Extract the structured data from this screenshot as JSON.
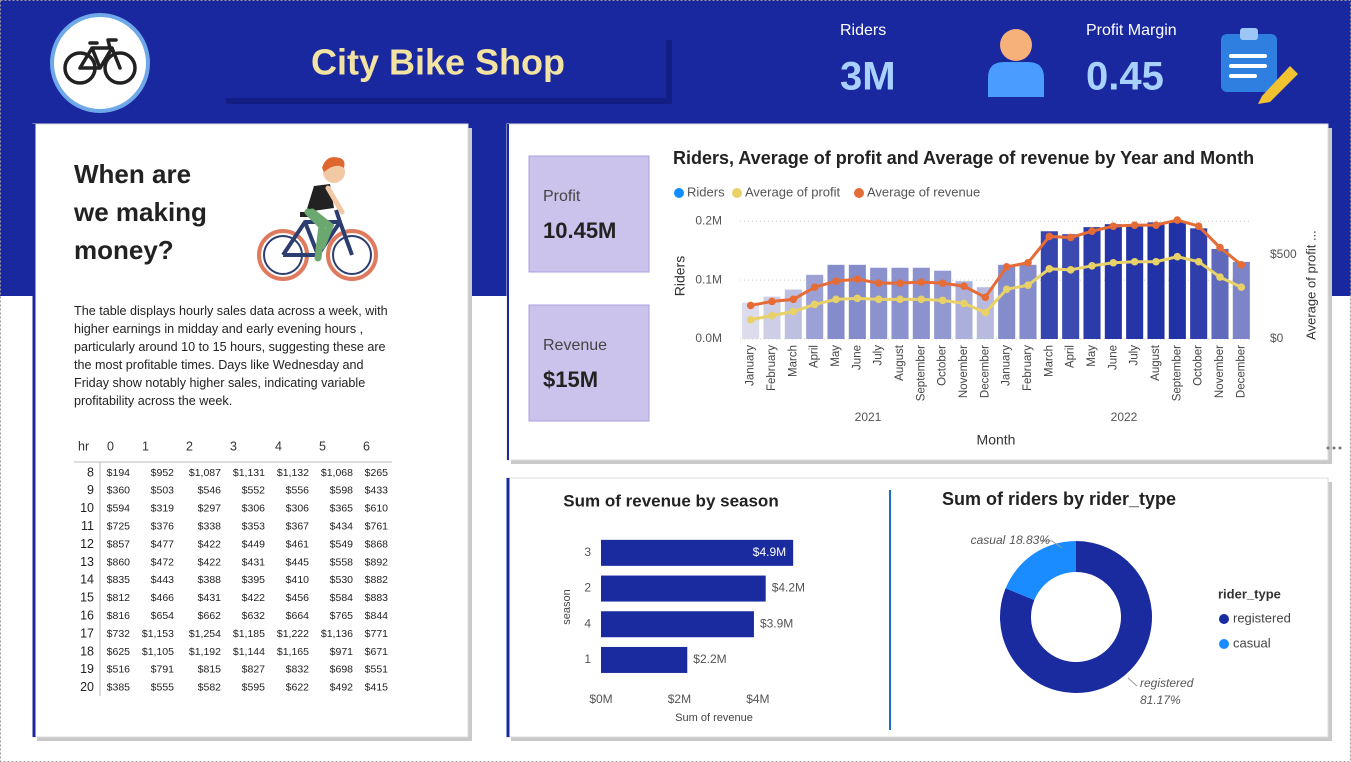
{
  "header": {
    "title": "City Bike Shop",
    "kpis": [
      {
        "label": "Riders",
        "value": "3M"
      },
      {
        "label": "Profit Margin",
        "value": "0.45"
      }
    ]
  },
  "story": {
    "heading": "When are we making money?",
    "text": "The table displays hourly sales data across a week, with higher earnings in midday and early evening hours , particularly around 10 to 15 hours, suggesting these are the most profitable times. Days like Wednesday and Friday show notably higher sales, indicating variable profitability across the week."
  },
  "table": {
    "columns": [
      "hr",
      "0",
      "1",
      "2",
      "3",
      "4",
      "5",
      "6"
    ],
    "rows": [
      [
        "8",
        "$194",
        "$952",
        "$1,087",
        "$1,131",
        "$1,132",
        "$1,068",
        "$265"
      ],
      [
        "9",
        "$360",
        "$503",
        "$546",
        "$552",
        "$556",
        "$598",
        "$433"
      ],
      [
        "10",
        "$594",
        "$319",
        "$297",
        "$306",
        "$306",
        "$365",
        "$610"
      ],
      [
        "11",
        "$725",
        "$376",
        "$338",
        "$353",
        "$367",
        "$434",
        "$761"
      ],
      [
        "12",
        "$857",
        "$477",
        "$422",
        "$449",
        "$461",
        "$549",
        "$868"
      ],
      [
        "13",
        "$860",
        "$472",
        "$422",
        "$431",
        "$445",
        "$558",
        "$892"
      ],
      [
        "14",
        "$835",
        "$443",
        "$388",
        "$395",
        "$410",
        "$530",
        "$882"
      ],
      [
        "15",
        "$812",
        "$466",
        "$431",
        "$422",
        "$456",
        "$584",
        "$883"
      ],
      [
        "16",
        "$816",
        "$654",
        "$662",
        "$632",
        "$664",
        "$765",
        "$844"
      ],
      [
        "17",
        "$732",
        "$1,153",
        "$1,254",
        "$1,185",
        "$1,222",
        "$1,136",
        "$771"
      ],
      [
        "18",
        "$625",
        "$1,105",
        "$1,192",
        "$1,144",
        "$1,165",
        "$971",
        "$671"
      ],
      [
        "19",
        "$516",
        "$791",
        "$815",
        "$827",
        "$832",
        "$698",
        "$551"
      ],
      [
        "20",
        "$385",
        "$555",
        "$582",
        "$595",
        "$622",
        "$492",
        "$415"
      ]
    ]
  },
  "cards": [
    {
      "label": "Profit",
      "value": "10.45M"
    },
    {
      "label": "Revenue",
      "value": "$15M"
    }
  ],
  "chart_data": [
    {
      "type": "combo",
      "title": "Riders, Average of profit and Average of revenue by Year and Month",
      "categories": [
        "January",
        "February",
        "March",
        "April",
        "May",
        "June",
        "July",
        "August",
        "September",
        "October",
        "November",
        "December",
        "January",
        "February",
        "March",
        "April",
        "May",
        "June",
        "July",
        "August",
        "September",
        "October",
        "November",
        "December"
      ],
      "groups": [
        "2021",
        "2022"
      ],
      "xlabel": "Month",
      "ylabel": "Riders",
      "y2label": "Average of profit ...",
      "ylim": [
        0,
        214000
      ],
      "yticks": [
        {
          "value": 0,
          "label": "0.0M"
        },
        {
          "value": 100000,
          "label": "0.1M"
        },
        {
          "value": 200000,
          "label": "0.2M"
        }
      ],
      "y2lim": [
        0,
        747
      ],
      "y2ticks": [
        {
          "value": 0,
          "label": "$0"
        },
        {
          "value": 500,
          "label": "$500"
        }
      ],
      "grid": true,
      "series": [
        {
          "name": "Riders",
          "type": "bar",
          "color": "#118dff",
          "gradient": [
            "#dcdcec",
            "#2131a6"
          ],
          "values": [
            62000,
            72000,
            84000,
            109000,
            126000,
            126000,
            121000,
            121000,
            121000,
            116000,
            98000,
            88000,
            126000,
            126000,
            183000,
            178000,
            190000,
            195000,
            195000,
            198000,
            198000,
            188000,
            153000,
            131000
          ]
        },
        {
          "name": "Average of profit",
          "type": "line",
          "axis": "y2",
          "color": "#e8d166",
          "values": [
            114,
            139,
            163,
            205,
            235,
            241,
            235,
            235,
            235,
            229,
            211,
            157,
            295,
            319,
            416,
            410,
            434,
            452,
            458,
            458,
            488,
            458,
            367,
            307
          ]
        },
        {
          "name": "Average of revenue",
          "type": "line",
          "axis": "y2",
          "color": "#e66c37",
          "values": [
            199,
            223,
            235,
            307,
            343,
            355,
            331,
            331,
            337,
            331,
            313,
            247,
            428,
            452,
            608,
            602,
            639,
            669,
            675,
            675,
            705,
            669,
            542,
            440
          ]
        }
      ]
    },
    {
      "type": "hbar",
      "title": "Sum of revenue by season",
      "categories": [
        "3",
        "2",
        "4",
        "1"
      ],
      "values": [
        4900000,
        4200000,
        3900000,
        2200000
      ],
      "value_labels": [
        "$4.9M",
        "$4.2M",
        "$3.9M",
        "$2.2M"
      ],
      "color": "#1a2a9f",
      "xlim": [
        0,
        5100000
      ],
      "xticks": [
        {
          "value": 0,
          "label": "$0M"
        },
        {
          "value": 2000000,
          "label": "$2M"
        },
        {
          "value": 4000000,
          "label": "$4M"
        }
      ],
      "xlabel": "Sum of revenue",
      "ylabel": "season"
    },
    {
      "type": "donut",
      "title": "Sum of riders by rider_type",
      "categories": [
        "registered",
        "casual"
      ],
      "values": [
        81.17,
        18.83
      ],
      "value_labels": [
        "81.17%",
        "18.83%"
      ],
      "colors": [
        "#1a2a9f",
        "#1a8cff"
      ],
      "legend_title": "rider_type",
      "legend": "right"
    }
  ]
}
